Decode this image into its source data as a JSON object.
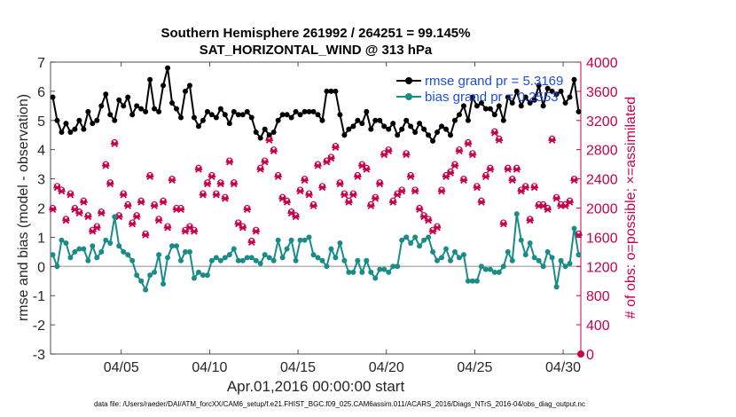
{
  "chart_data": {
    "type": "line",
    "title": "Southern Hemisphere 261992 / 264251 = 99.145%",
    "subtitle": "SAT_HORIZONTAL_WIND @ 313 hPa",
    "xlabel": "Apr.01,2016 00:00:00 start",
    "ylabel": "rmse and bias (model - observation)",
    "ylabel_right": "# of obs: o=possible; ×=assimilated",
    "footnote": "data file: /Users/raeder/DAI/ATM_forcXX/CAM6_setup/f.e21.FHIST_BGC.f09_025.CAM6assim.011/ACARS_2016/Diags_NTrS_2016-04/obs_diag_output.nc",
    "xlim": [
      1,
      31
    ],
    "ylim": [
      -3,
      7
    ],
    "ylim_right": [
      0,
      4000
    ],
    "x_ticks": [
      5,
      10,
      15,
      20,
      25,
      30
    ],
    "x_tick_labels": [
      "04/05",
      "04/10",
      "04/15",
      "04/20",
      "04/25",
      "04/30"
    ],
    "y_ticks": [
      -3,
      -2,
      -1,
      0,
      1,
      2,
      3,
      4,
      5,
      6,
      7
    ],
    "y_tick_labels": [
      "-3",
      "-2",
      "-1",
      "0",
      "1",
      "2",
      "3",
      "4",
      "5",
      "6",
      "7"
    ],
    "y_right_ticks": [
      0,
      400,
      800,
      1200,
      1600,
      2000,
      2400,
      2800,
      3200,
      3600,
      4000
    ],
    "y_right_tick_labels": [
      "0",
      "400",
      "800",
      "1200",
      "1600",
      "2000",
      "2400",
      "2800",
      "3200",
      "3600",
      "4000"
    ],
    "zero_line": 0,
    "legend": [
      {
        "label": "rmse grand pr =  5.3169",
        "color": "#000000"
      },
      {
        "label": "bias grand pr =  0.2553",
        "color": "#1a8c88"
      }
    ],
    "colors": {
      "rmse": "#000000",
      "bias": "#1a8c88",
      "obs": "#c8004b",
      "zero": "#b4b4b4"
    },
    "series": [
      {
        "name": "rmse",
        "x": [
          1.125,
          1.375,
          1.625,
          1.875,
          2.125,
          2.375,
          2.625,
          2.875,
          3.125,
          3.375,
          3.625,
          3.875,
          4.125,
          4.375,
          4.625,
          4.875,
          5.125,
          5.375,
          5.625,
          5.875,
          6.125,
          6.375,
          6.625,
          6.875,
          7.125,
          7.375,
          7.625,
          7.875,
          8.125,
          8.375,
          8.625,
          8.875,
          9.125,
          9.375,
          9.625,
          9.875,
          10.125,
          10.375,
          10.625,
          10.875,
          11.125,
          11.375,
          11.625,
          11.875,
          12.125,
          12.375,
          12.625,
          12.875,
          13.125,
          13.375,
          13.625,
          13.875,
          14.125,
          14.375,
          14.625,
          14.875,
          15.125,
          15.375,
          15.625,
          15.875,
          16.125,
          16.375,
          16.625,
          16.875,
          17.125,
          17.375,
          17.625,
          17.875,
          18.125,
          18.375,
          18.625,
          18.875,
          19.125,
          19.375,
          19.625,
          19.875,
          20.125,
          20.375,
          20.625,
          20.875,
          21.125,
          21.375,
          21.625,
          21.875,
          22.125,
          22.375,
          22.625,
          22.875,
          23.125,
          23.375,
          23.625,
          23.875,
          24.125,
          24.375,
          24.625,
          24.875,
          25.125,
          25.375,
          25.625,
          25.875,
          26.125,
          26.375,
          26.625,
          26.875,
          27.125,
          27.375,
          27.625,
          27.875,
          28.125,
          28.375,
          28.625,
          28.875,
          29.125,
          29.375,
          29.625,
          29.875,
          30.125,
          30.375,
          30.625,
          30.875
        ],
        "values": [
          5.8,
          5.0,
          4.6,
          4.9,
          4.6,
          4.7,
          5.0,
          4.7,
          5.3,
          4.9,
          5.0,
          5.5,
          5.9,
          5.2,
          5.0,
          5.7,
          5.5,
          5.8,
          5.2,
          5.5,
          5.4,
          5.3,
          6.4,
          5.4,
          5.3,
          6.2,
          6.8,
          5.6,
          5.4,
          5.1,
          6.0,
          6.2,
          5.1,
          4.8,
          5.0,
          5.3,
          5.2,
          5.1,
          5.4,
          5.2,
          4.9,
          5.3,
          5.2,
          5.2,
          5.3,
          5.1,
          4.6,
          4.4,
          4.7,
          4.5,
          4.6,
          5.0,
          5.2,
          5.2,
          5.1,
          5.3,
          5.2,
          5.3,
          5.3,
          5.3,
          5.2,
          5.0,
          6.0,
          6.0,
          6.0,
          5.2,
          4.5,
          4.7,
          4.8,
          5.0,
          4.9,
          5.3,
          4.7,
          5.0,
          5.0,
          4.8,
          4.7,
          4.9,
          4.5,
          4.7,
          5.0,
          4.8,
          4.6,
          4.9,
          4.7,
          4.5,
          4.3,
          4.6,
          4.8,
          4.7,
          4.5,
          5.0,
          5.2,
          5.5,
          5.0,
          5.8,
          5.5,
          5.6,
          5.4,
          5.4,
          5.2,
          5.5,
          5.0,
          5.8,
          5.6,
          6.0,
          5.5,
          5.8,
          5.6,
          5.7,
          6.2,
          5.5,
          6.1,
          6.0,
          5.9,
          6.0,
          5.6,
          5.8,
          6.4,
          5.3
        ],
        "color": "#000000"
      },
      {
        "name": "bias",
        "x": [
          1.125,
          1.375,
          1.625,
          1.875,
          2.125,
          2.375,
          2.625,
          2.875,
          3.125,
          3.375,
          3.625,
          3.875,
          4.125,
          4.375,
          4.625,
          4.875,
          5.125,
          5.375,
          5.625,
          5.875,
          6.125,
          6.375,
          6.625,
          6.875,
          7.125,
          7.375,
          7.625,
          7.875,
          8.125,
          8.375,
          8.625,
          8.875,
          9.125,
          9.375,
          9.625,
          9.875,
          10.125,
          10.375,
          10.625,
          10.875,
          11.125,
          11.375,
          11.625,
          11.875,
          12.125,
          12.375,
          12.625,
          12.875,
          13.125,
          13.375,
          13.625,
          13.875,
          14.125,
          14.375,
          14.625,
          14.875,
          15.125,
          15.375,
          15.625,
          15.875,
          16.125,
          16.375,
          16.625,
          16.875,
          17.125,
          17.375,
          17.625,
          17.875,
          18.125,
          18.375,
          18.625,
          18.875,
          19.125,
          19.375,
          19.625,
          19.875,
          20.125,
          20.375,
          20.625,
          20.875,
          21.125,
          21.375,
          21.625,
          21.875,
          22.125,
          22.375,
          22.625,
          22.875,
          23.125,
          23.375,
          23.625,
          23.875,
          24.125,
          24.375,
          24.625,
          24.875,
          25.125,
          25.375,
          25.625,
          25.875,
          26.125,
          26.375,
          26.625,
          26.875,
          27.125,
          27.375,
          27.625,
          27.875,
          28.125,
          28.375,
          28.625,
          28.875,
          29.125,
          29.375,
          29.625,
          29.875,
          30.125,
          30.375,
          30.625,
          30.875
        ],
        "values": [
          0.4,
          0.0,
          0.9,
          0.8,
          0.3,
          0.5,
          0.6,
          0.6,
          0.2,
          0.7,
          0.3,
          0.5,
          0.9,
          0.8,
          1.7,
          0.7,
          0.5,
          0.4,
          0.2,
          -0.3,
          -0.5,
          -0.8,
          -0.3,
          -0.2,
          0.4,
          -0.6,
          0.3,
          0.7,
          0.7,
          0.2,
          0.5,
          0.5,
          -0.4,
          -0.2,
          -0.3,
          -0.3,
          0.2,
          0.3,
          0.2,
          0.3,
          0.4,
          0.6,
          0.2,
          0.2,
          0.3,
          0.3,
          0.2,
          0.1,
          0.4,
          0.3,
          0.2,
          0.9,
          0.3,
          0.6,
          0.9,
          0.2,
          0.9,
          0.9,
          1.0,
          0.4,
          0.3,
          0.2,
          0.0,
          0.6,
          0.3,
          0.8,
          0.2,
          -0.2,
          -0.2,
          0.2,
          -0.2,
          0.2,
          -0.2,
          -0.4,
          -0.1,
          -0.1,
          -0.2,
          0.0,
          0.0,
          0.9,
          1.0,
          0.8,
          1.0,
          0.7,
          0.9,
          1.0,
          0.5,
          0.2,
          0.3,
          0.6,
          0.2,
          0.5,
          0.3,
          0.4,
          -0.5,
          -0.5,
          -0.5,
          0.0,
          -0.1,
          -0.1,
          -0.2,
          -0.2,
          0.0,
          0.5,
          0.2,
          1.8,
          0.9,
          0.4,
          0.8,
          0.3,
          0.2,
          0.0,
          0.5,
          0.3,
          -0.7,
          0.2,
          0.0,
          0.1,
          1.3,
          0.4
        ],
        "color": "#1a8c88"
      },
      {
        "name": "obs possible",
        "x": [
          1.125,
          1.375,
          1.625,
          1.875,
          2.125,
          2.375,
          2.625,
          2.875,
          3.125,
          3.375,
          3.625,
          3.875,
          4.125,
          4.375,
          4.625,
          4.875,
          5.125,
          5.375,
          5.625,
          5.875,
          6.125,
          6.375,
          6.625,
          6.875,
          7.125,
          7.375,
          7.625,
          7.875,
          8.125,
          8.375,
          8.625,
          8.875,
          9.125,
          9.375,
          9.625,
          9.875,
          10.125,
          10.375,
          10.625,
          10.875,
          11.125,
          11.375,
          11.625,
          11.875,
          12.125,
          12.375,
          12.625,
          12.875,
          13.125,
          13.375,
          13.625,
          13.875,
          14.125,
          14.375,
          14.625,
          14.875,
          15.125,
          15.375,
          15.625,
          15.875,
          16.125,
          16.375,
          16.625,
          16.875,
          17.125,
          17.375,
          17.625,
          17.875,
          18.125,
          18.375,
          18.625,
          18.875,
          19.125,
          19.375,
          19.625,
          19.875,
          20.125,
          20.375,
          20.625,
          20.875,
          21.125,
          21.375,
          21.625,
          21.875,
          22.125,
          22.375,
          22.625,
          22.875,
          23.125,
          23.375,
          23.625,
          23.875,
          24.125,
          24.375,
          24.625,
          24.875,
          25.125,
          25.375,
          25.625,
          25.875,
          26.125,
          26.375,
          26.625,
          26.875,
          27.125,
          27.375,
          27.625,
          27.875,
          28.125,
          28.375,
          28.625,
          28.875,
          29.125,
          29.375,
          29.625,
          29.875,
          30.125,
          30.375,
          30.625,
          30.875
        ],
        "values": [
          2000,
          2300,
          2250,
          1850,
          2200,
          2000,
          1950,
          2100,
          1900,
          1700,
          1750,
          1950,
          2600,
          2350,
          2900,
          1900,
          2200,
          2050,
          1800,
          1900,
          2100,
          1650,
          2450,
          2050,
          1850,
          2100,
          1750,
          2400,
          2000,
          2000,
          1700,
          1750,
          1700,
          2550,
          2200,
          2350,
          2450,
          2200,
          2350,
          2150,
          2650,
          2350,
          1800,
          1750,
          2000,
          1550,
          1700,
          2550,
          2650,
          2950,
          2800,
          2450,
          2150,
          2100,
          1950,
          1900,
          2250,
          2400,
          2200,
          2050,
          2600,
          2300,
          2650,
          2700,
          2850,
          2350,
          2200,
          2100,
          2200,
          2450,
          2600,
          2550,
          2050,
          2150,
          2350,
          2750,
          2800,
          2100,
          2200,
          2250,
          2750,
          2450,
          2250,
          2000,
          1900,
          1850,
          1700,
          1750,
          2250,
          2450,
          2500,
          2600,
          2800,
          2400,
          2900,
          2750,
          2300,
          2100,
          2450,
          2550,
          3050,
          2950,
          1800,
          2550,
          2400,
          2550,
          2250,
          2300,
          1850,
          2300,
          2050,
          2050,
          2000,
          2950,
          2150,
          2050,
          2050,
          2100,
          2400,
          1650
        ],
        "color": "#c8004b"
      },
      {
        "name": "obs assimilated",
        "x": [
          1.125,
          1.375,
          1.625,
          1.875,
          2.125,
          2.375,
          2.625,
          2.875,
          3.125,
          3.375,
          3.625,
          3.875,
          4.125,
          4.375,
          4.625,
          4.875,
          5.125,
          5.375,
          5.625,
          5.875,
          6.125,
          6.375,
          6.625,
          6.875,
          7.125,
          7.375,
          7.625,
          7.875,
          8.125,
          8.375,
          8.625,
          8.875,
          9.125,
          9.375,
          9.625,
          9.875,
          10.125,
          10.375,
          10.625,
          10.875,
          11.125,
          11.375,
          11.625,
          11.875,
          12.125,
          12.375,
          12.625,
          12.875,
          13.125,
          13.375,
          13.625,
          13.875,
          14.125,
          14.375,
          14.625,
          14.875,
          15.125,
          15.375,
          15.625,
          15.875,
          16.125,
          16.375,
          16.625,
          16.875,
          17.125,
          17.375,
          17.625,
          17.875,
          18.125,
          18.375,
          18.625,
          18.875,
          19.125,
          19.375,
          19.625,
          19.875,
          20.125,
          20.375,
          20.625,
          20.875,
          21.125,
          21.375,
          21.625,
          21.875,
          22.125,
          22.375,
          22.625,
          22.875,
          23.125,
          23.375,
          23.625,
          23.875,
          24.125,
          24.375,
          24.625,
          24.875,
          25.125,
          25.375,
          25.625,
          25.875,
          26.125,
          26.375,
          26.625,
          26.875,
          27.125,
          27.375,
          27.625,
          27.875,
          28.125,
          28.375,
          28.625,
          28.875,
          29.125,
          29.375,
          29.625,
          29.875,
          30.125,
          30.375,
          30.625,
          30.875
        ],
        "values": [
          1980,
          2280,
          2230,
          1830,
          2180,
          1980,
          1930,
          2080,
          1880,
          1680,
          1730,
          1930,
          2580,
          2330,
          2880,
          1880,
          2180,
          2030,
          1780,
          1880,
          2080,
          1630,
          2430,
          2030,
          1830,
          2080,
          1730,
          2380,
          1980,
          1980,
          1680,
          1730,
          1680,
          2530,
          2180,
          2330,
          2430,
          2180,
          2330,
          2130,
          2630,
          2330,
          1780,
          1730,
          1980,
          1530,
          1680,
          2530,
          2630,
          2930,
          2780,
          2430,
          2130,
          2080,
          1930,
          1880,
          2230,
          2380,
          2180,
          2030,
          2580,
          2280,
          2630,
          2680,
          2830,
          2330,
          2180,
          2080,
          2180,
          2430,
          2580,
          2530,
          2030,
          2130,
          2330,
          2730,
          2780,
          2080,
          2180,
          2230,
          2730,
          2430,
          2230,
          1980,
          1880,
          1830,
          1680,
          1730,
          2230,
          2430,
          2480,
          2580,
          2780,
          2380,
          2880,
          2730,
          2280,
          2080,
          2430,
          2530,
          3030,
          2930,
          1780,
          2530,
          2380,
          2530,
          2230,
          2280,
          1830,
          2280,
          2030,
          2030,
          1980,
          2930,
          2130,
          2030,
          2030,
          2080,
          2380,
          1630
        ],
        "color": "#c8004b"
      }
    ]
  }
}
